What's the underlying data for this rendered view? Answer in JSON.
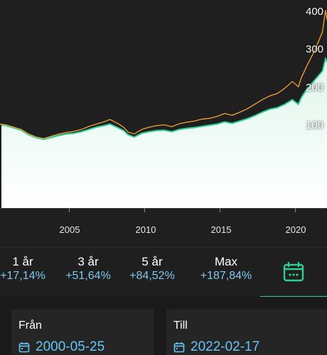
{
  "chart_data": {
    "type": "line",
    "x_range": [
      2000.4,
      2022.1
    ],
    "y_range": [
      0,
      420
    ],
    "y_ticks": [
      100,
      200,
      300,
      400
    ],
    "x_ticks": [
      2005,
      2010,
      2015,
      2020
    ],
    "series": [
      {
        "color": "#f2a43a",
        "x": [
          2000.4,
          2000.8,
          2001.3,
          2001.8,
          2002.3,
          2002.8,
          2003.3,
          2003.8,
          2004.3,
          2004.8,
          2005.3,
          2005.8,
          2006.3,
          2006.8,
          2007.3,
          2007.7,
          2008.2,
          2008.6,
          2008.9,
          2009.3,
          2009.8,
          2010.3,
          2010.8,
          2011.3,
          2011.8,
          2012.3,
          2012.8,
          2013.3,
          2013.8,
          2014.3,
          2014.8,
          2015.3,
          2015.8,
          2016.3,
          2016.8,
          2017.3,
          2017.8,
          2018.3,
          2018.8,
          2019.3,
          2019.8,
          2020.2,
          2020.4,
          2020.8,
          2021.3,
          2021.8,
          2022.0,
          2022.1
        ],
        "y": [
          106,
          104,
          98,
          92,
          80,
          72,
          68,
          74,
          80,
          84,
          87,
          92,
          100,
          106,
          112,
          118,
          108,
          98,
          85,
          80,
          92,
          98,
          102,
          104,
          99,
          107,
          111,
          114,
          119,
          121,
          126,
          134,
          129,
          137,
          146,
          158,
          170,
          180,
          186,
          200,
          218,
          204,
          228,
          262,
          300,
          348,
          405,
          380
        ]
      },
      {
        "color": "#2fcf93",
        "x": [
          2000.4,
          2000.8,
          2001.3,
          2001.8,
          2002.3,
          2002.8,
          2003.3,
          2003.8,
          2004.3,
          2004.8,
          2005.3,
          2005.8,
          2006.3,
          2006.8,
          2007.3,
          2007.7,
          2008.2,
          2008.6,
          2008.9,
          2009.3,
          2009.8,
          2010.3,
          2010.8,
          2011.3,
          2011.8,
          2012.3,
          2012.8,
          2013.3,
          2013.8,
          2014.3,
          2014.8,
          2015.3,
          2015.8,
          2016.3,
          2016.8,
          2017.3,
          2017.8,
          2018.3,
          2018.8,
          2019.3,
          2019.8,
          2020.2,
          2020.4,
          2020.8,
          2021.3,
          2021.8,
          2022.0,
          2022.1
        ],
        "y": [
          104,
          102,
          96,
          90,
          78,
          70,
          66,
          71,
          76,
          80,
          82,
          86,
          92,
          98,
          102,
          106,
          97,
          89,
          78,
          72,
          82,
          86,
          89,
          90,
          86,
          92,
          95,
          97,
          100,
          103,
          106,
          112,
          108,
          114,
          120,
          128,
          137,
          145,
          149,
          158,
          170,
          158,
          176,
          200,
          222,
          245,
          278,
          270
        ]
      }
    ]
  },
  "y_labels": [
    "400",
    "300",
    "200",
    "100"
  ],
  "x_labels": [
    "2005",
    "2010",
    "2015",
    "2020"
  ],
  "periods": [
    {
      "label": "1 år",
      "change": "+17,14%"
    },
    {
      "label": "3 år",
      "change": "+51,64%"
    },
    {
      "label": "5 år",
      "change": "+84,52%"
    },
    {
      "label": "Max",
      "change": "+187,84%"
    }
  ],
  "calendar_tab_icon": "calendar-icon",
  "accent_color": "#2fcf93",
  "link_color": "#66c6f2",
  "from": {
    "title": "Från",
    "value": "2000-05-25",
    "icon": "calendar-icon"
  },
  "to": {
    "title": "Till",
    "value": "2022-02-17",
    "icon": "calendar-icon"
  }
}
